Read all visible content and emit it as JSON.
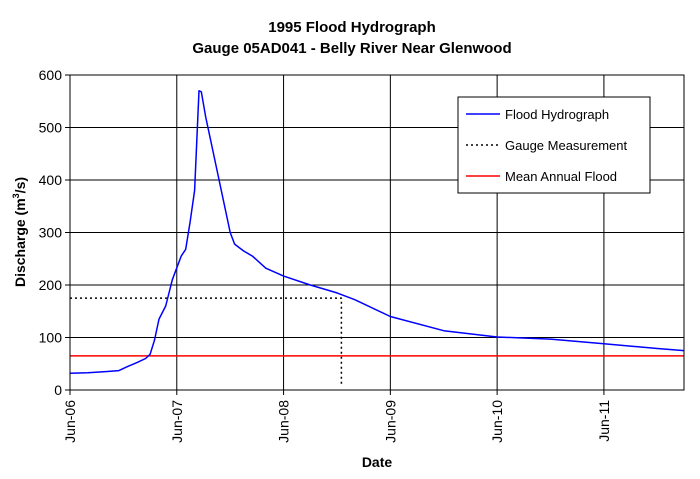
{
  "chart_data": {
    "type": "line",
    "title": "1995 Flood Hydrograph",
    "subtitle": "Gauge 05AD041 - Belly River Near Glenwood",
    "xlabel": "Date",
    "ylabel": "Discharge (m",
    "ylabel_sup": "3",
    "ylabel_end": "/s)",
    "ylim": [
      0,
      600
    ],
    "yticks": [
      0,
      100,
      200,
      300,
      400,
      500,
      600
    ],
    "xlim": [
      "1995-06-06",
      "1995-06-11 18:00"
    ],
    "xticks": [
      {
        "date": "1995-06-06",
        "label": "Jun-06"
      },
      {
        "date": "1995-06-07",
        "label": "Jun-07"
      },
      {
        "date": "1995-06-08",
        "label": "Jun-08"
      },
      {
        "date": "1995-06-09",
        "label": "Jun-09"
      },
      {
        "date": "1995-06-10",
        "label": "Jun-10"
      },
      {
        "date": "1995-06-11",
        "label": "Jun-11"
      }
    ],
    "grid": true,
    "legend_position": "top-right",
    "series": [
      {
        "name": "Flood Hydrograph",
        "color": "#0000ff",
        "style": "solid",
        "points": [
          [
            "1995-06-06 00:00",
            32
          ],
          [
            "1995-06-06 04:00",
            33
          ],
          [
            "1995-06-06 08:00",
            35
          ],
          [
            "1995-06-06 11:00",
            37
          ],
          [
            "1995-06-06 13:00",
            45
          ],
          [
            "1995-06-06 15:00",
            52
          ],
          [
            "1995-06-06 17:00",
            60
          ],
          [
            "1995-06-06 18:00",
            68
          ],
          [
            "1995-06-06 19:00",
            95
          ],
          [
            "1995-06-06 20:00",
            135
          ],
          [
            "1995-06-06 21:30",
            160
          ],
          [
            "1995-06-06 23:00",
            210
          ],
          [
            "1995-06-07 01:00",
            255
          ],
          [
            "1995-06-07 02:00",
            268
          ],
          [
            "1995-06-07 03:00",
            320
          ],
          [
            "1995-06-07 04:00",
            380
          ],
          [
            "1995-06-07 05:00",
            570
          ],
          [
            "1995-06-07 05:30",
            568
          ],
          [
            "1995-06-07 06:30",
            520
          ],
          [
            "1995-06-07 08:00",
            460
          ],
          [
            "1995-06-07 10:00",
            380
          ],
          [
            "1995-06-07 12:00",
            300
          ],
          [
            "1995-06-07 13:00",
            278
          ],
          [
            "1995-06-07 15:00",
            265
          ],
          [
            "1995-06-07 17:00",
            255
          ],
          [
            "1995-06-07 20:00",
            232
          ],
          [
            "1995-06-08 00:00",
            217
          ],
          [
            "1995-06-08 06:00",
            200
          ],
          [
            "1995-06-08 12:00",
            185
          ],
          [
            "1995-06-08 16:00",
            172
          ],
          [
            "1995-06-09 00:00",
            140
          ],
          [
            "1995-06-09 12:00",
            113
          ],
          [
            "1995-06-10 00:00",
            101
          ],
          [
            "1995-06-10 12:00",
            97
          ],
          [
            "1995-06-11 00:00",
            88
          ],
          [
            "1995-06-11 12:00",
            79
          ],
          [
            "1995-06-11 18:00",
            75
          ]
        ]
      },
      {
        "name": "Gauge Measurement",
        "color": "#000000",
        "style": "dotted",
        "points": [
          [
            "1995-06-06 00:00",
            175
          ],
          [
            "1995-06-08 13:00",
            175
          ],
          [
            "1995-06-08 13:00",
            8
          ]
        ]
      },
      {
        "name": "Mean Annual Flood",
        "color": "#ff0000",
        "style": "solid",
        "points": [
          [
            "1995-06-06 00:00",
            65
          ],
          [
            "1995-06-11 18:00",
            65
          ]
        ]
      }
    ]
  }
}
